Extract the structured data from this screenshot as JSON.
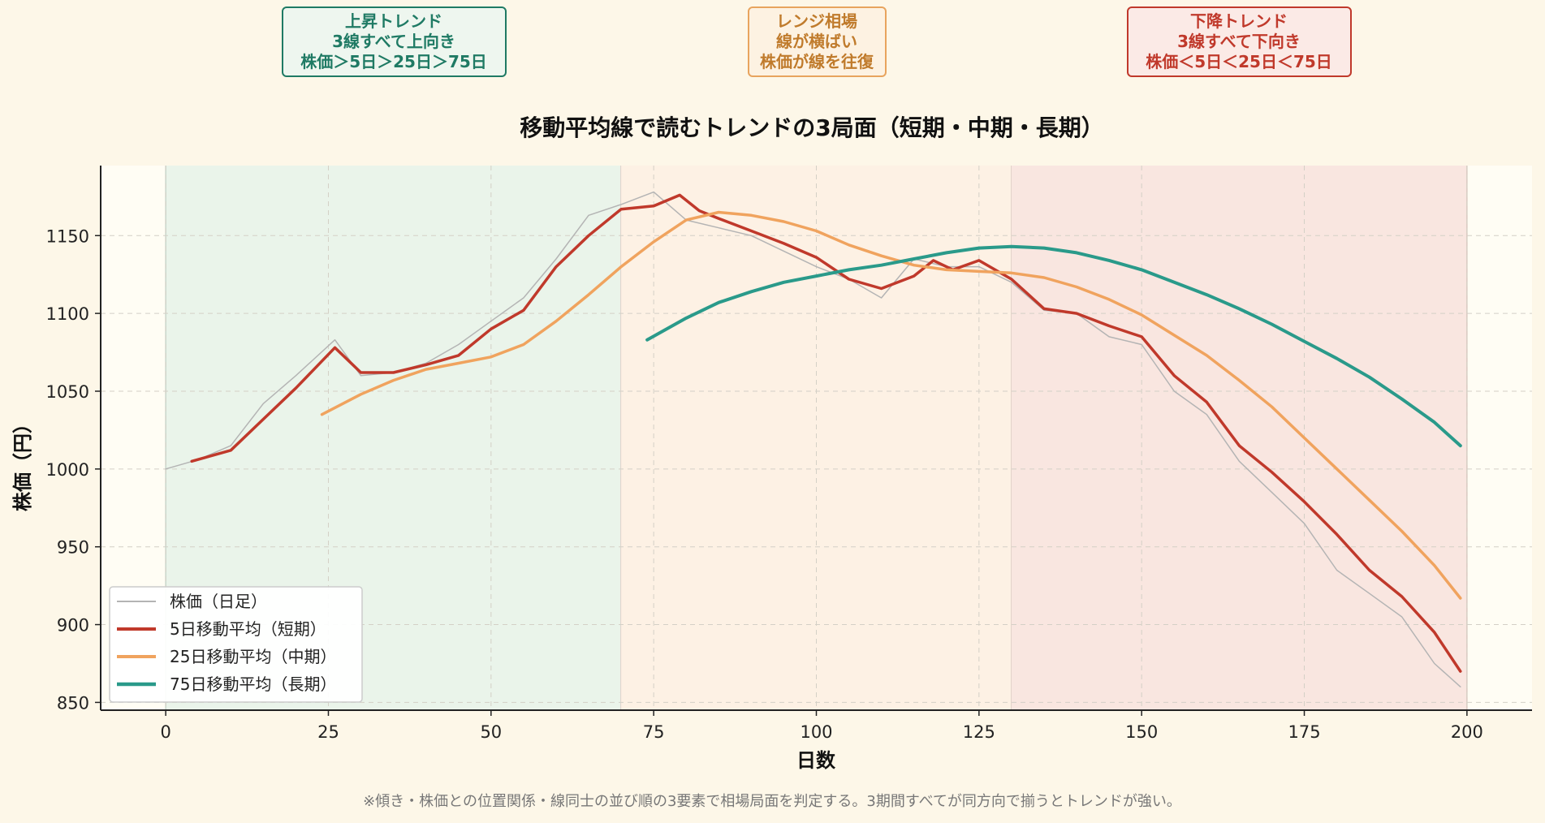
{
  "annotations": [
    {
      "line1": "上昇トレンド",
      "line2": "3線すべて上向き",
      "line3": "株価＞5日＞25日＞75日",
      "color": "#1f7a64",
      "bg": "#eef6ef"
    },
    {
      "line1": "レンジ相場",
      "line2": "線が横ばい",
      "line3": "株価が線を往復",
      "color": "#c07b2c",
      "bg": "#fdf2e2"
    },
    {
      "line1": "下降トレンド",
      "line2": "3線すべて下向き",
      "line3": "株価＜5日＜25日＜75日",
      "color": "#c0392b",
      "bg": "#fbeae6"
    }
  ],
  "footnote": "※傾き・株価との位置関係・線同士の並び順の3要素で相場局面を判定する。3期間すべてが同方向で揃うとトレンドが強い。",
  "colors": {
    "price": "#b4b4b4",
    "ma5": "#c0392b",
    "ma25": "#f0a35e",
    "ma75": "#2a9a8a",
    "zone_up": "#eaf4ea",
    "zone_range": "#fdf1e4",
    "zone_down": "#f9e6e0",
    "plot_bg": "#fffdf4"
  },
  "chart_data": {
    "type": "line",
    "title": "移動平均線で読むトレンドの3局面（短期・中期・長期）",
    "xlabel": "日数",
    "ylabel": "株価（円）",
    "xlim": [
      -10,
      210
    ],
    "ylim": [
      845,
      1195
    ],
    "xticks": [
      0,
      25,
      50,
      75,
      100,
      125,
      150,
      175,
      200
    ],
    "yticks": [
      850,
      900,
      950,
      1000,
      1050,
      1100,
      1150
    ],
    "grid": true,
    "legend_position": "lower-left",
    "zones": [
      {
        "name": "上昇トレンド",
        "x_start": 0,
        "x_end": 70
      },
      {
        "name": "レンジ相場",
        "x_start": 70,
        "x_end": 130
      },
      {
        "name": "下降トレンド",
        "x_start": 130,
        "x_end": 200
      }
    ],
    "series": [
      {
        "name": "株価（日足）",
        "key": "price",
        "x": [
          0,
          5,
          10,
          15,
          20,
          26,
          30,
          35,
          40,
          45,
          50,
          55,
          60,
          65,
          70,
          75,
          80,
          85,
          90,
          95,
          100,
          105,
          110,
          115,
          120,
          125,
          130,
          135,
          140,
          145,
          150,
          155,
          160,
          165,
          170,
          175,
          180,
          185,
          190,
          195,
          199
        ],
        "y": [
          1000,
          1006,
          1015,
          1042,
          1060,
          1083,
          1060,
          1062,
          1068,
          1080,
          1095,
          1110,
          1135,
          1163,
          1170,
          1178,
          1160,
          1155,
          1150,
          1140,
          1130,
          1122,
          1110,
          1135,
          1130,
          1130,
          1120,
          1102,
          1100,
          1085,
          1080,
          1050,
          1035,
          1005,
          985,
          965,
          935,
          920,
          905,
          875,
          860
        ]
      },
      {
        "name": "5日移動平均（短期）",
        "key": "ma5",
        "x": [
          4,
          10,
          15,
          20,
          26,
          30,
          35,
          40,
          45,
          50,
          55,
          60,
          65,
          70,
          75,
          79,
          82,
          85,
          90,
          95,
          100,
          105,
          110,
          115,
          118,
          121,
          125,
          130,
          135,
          140,
          145,
          150,
          155,
          160,
          165,
          170,
          175,
          180,
          185,
          190,
          195,
          199
        ],
        "y": [
          1005,
          1012,
          1032,
          1052,
          1078,
          1062,
          1062,
          1067,
          1073,
          1090,
          1102,
          1130,
          1150,
          1167,
          1169,
          1176,
          1166,
          1161,
          1153,
          1145,
          1136,
          1122,
          1116,
          1124,
          1134,
          1128,
          1134,
          1122,
          1103,
          1100,
          1092,
          1085,
          1060,
          1043,
          1015,
          998,
          979,
          958,
          935,
          918,
          895,
          870
        ]
      },
      {
        "name": "25日移動平均（中期）",
        "key": "ma25",
        "x": [
          24,
          30,
          35,
          40,
          45,
          50,
          55,
          60,
          65,
          70,
          75,
          80,
          85,
          90,
          95,
          100,
          105,
          110,
          115,
          120,
          125,
          130,
          135,
          140,
          145,
          150,
          155,
          160,
          165,
          170,
          175,
          180,
          185,
          190,
          195,
          199
        ],
        "y": [
          1035,
          1048,
          1057,
          1064,
          1068,
          1072,
          1080,
          1095,
          1112,
          1130,
          1146,
          1160,
          1165,
          1163,
          1159,
          1153,
          1144,
          1137,
          1131,
          1128,
          1127,
          1126,
          1123,
          1117,
          1109,
          1099,
          1086,
          1073,
          1057,
          1040,
          1020,
          1000,
          980,
          960,
          938,
          917
        ]
      },
      {
        "name": "75日移動平均（長期）",
        "key": "ma75",
        "x": [
          74,
          80,
          85,
          90,
          95,
          100,
          105,
          110,
          115,
          120,
          125,
          130,
          135,
          140,
          145,
          150,
          155,
          160,
          165,
          170,
          175,
          180,
          185,
          190,
          195,
          199
        ],
        "y": [
          1083,
          1097,
          1107,
          1114,
          1120,
          1124,
          1128,
          1131,
          1135,
          1139,
          1142,
          1143,
          1142,
          1139,
          1134,
          1128,
          1120,
          1112,
          1103,
          1093,
          1082,
          1071,
          1059,
          1045,
          1030,
          1015
        ]
      }
    ]
  }
}
